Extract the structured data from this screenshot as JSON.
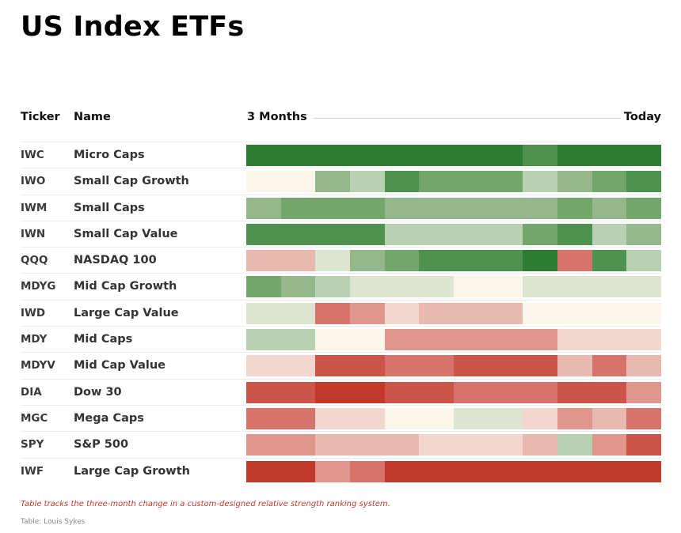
{
  "title": "US Index ETFs",
  "header": {
    "ticker": "Ticker",
    "name": "Name",
    "start": "3 Months",
    "end": "Today"
  },
  "note": "Table tracks the three-month change in a custom-designed relative strength ranking system.",
  "source": "Table: Louis Sykes",
  "colors": {
    "scale": [
      "#c0392b",
      "#cb5548",
      "#d6736a",
      "#e0968d",
      "#e9b8ae",
      "#f3d6cd",
      "#faf6ea",
      "#dde5d0",
      "#b8d1b0",
      "#94b88c",
      "#72a66c",
      "#4f914f",
      "#2e7d32"
    ]
  },
  "chart_data": {
    "type": "heatmap",
    "title": "US Index ETFs",
    "x_start_label": "3 Months",
    "x_end_label": "Today",
    "columns": 12,
    "rows": [
      {
        "ticker": "IWC",
        "name": "Micro Caps",
        "values": [
          12,
          12,
          12,
          12,
          12,
          12,
          12,
          12,
          11,
          12,
          12,
          12
        ]
      },
      {
        "ticker": "IWO",
        "name": "Small Cap Growth",
        "values": [
          6,
          6,
          9,
          8,
          11,
          10,
          10,
          10,
          8,
          9,
          10,
          11
        ]
      },
      {
        "ticker": "IWM",
        "name": "Small Caps",
        "values": [
          9,
          10,
          10,
          10,
          9,
          9,
          9,
          9,
          9,
          10,
          9,
          10
        ]
      },
      {
        "ticker": "IWN",
        "name": "Small Cap Value",
        "values": [
          11,
          11,
          11,
          11,
          8,
          8,
          8,
          8,
          10,
          11,
          8,
          9
        ]
      },
      {
        "ticker": "QQQ",
        "name": "NASDAQ 100",
        "values": [
          4,
          4,
          7,
          9,
          10,
          11,
          11,
          11,
          12,
          2,
          11,
          8
        ]
      },
      {
        "ticker": "MDYG",
        "name": "Mid Cap Growth",
        "values": [
          10,
          9,
          8,
          7,
          7,
          7,
          6,
          6,
          7,
          7,
          7,
          7
        ]
      },
      {
        "ticker": "IWD",
        "name": "Large Cap Value",
        "values": [
          7,
          7,
          2,
          3,
          5,
          4,
          4,
          4,
          6,
          6,
          6,
          6
        ]
      },
      {
        "ticker": "MDY",
        "name": "Mid Caps",
        "values": [
          8,
          8,
          6,
          6,
          3,
          3,
          3,
          3,
          3,
          5,
          5,
          5
        ]
      },
      {
        "ticker": "MDYV",
        "name": "Mid Cap Value",
        "values": [
          5,
          5,
          1,
          1,
          2,
          2,
          1,
          1,
          1,
          4,
          2,
          4
        ]
      },
      {
        "ticker": "DIA",
        "name": "Dow 30",
        "values": [
          1,
          1,
          0,
          0,
          1,
          1,
          2,
          2,
          2,
          1,
          1,
          3
        ]
      },
      {
        "ticker": "MGC",
        "name": "Mega Caps",
        "values": [
          2,
          2,
          5,
          5,
          6,
          6,
          7,
          7,
          5,
          3,
          4,
          2
        ]
      },
      {
        "ticker": "SPY",
        "name": "S&P 500",
        "values": [
          3,
          3,
          4,
          4,
          4,
          5,
          5,
          5,
          4,
          8,
          3,
          1
        ]
      },
      {
        "ticker": "IWF",
        "name": "Large Cap Growth",
        "values": [
          0,
          0,
          3,
          2,
          0,
          0,
          0,
          0,
          0,
          0,
          0,
          0
        ]
      }
    ]
  }
}
